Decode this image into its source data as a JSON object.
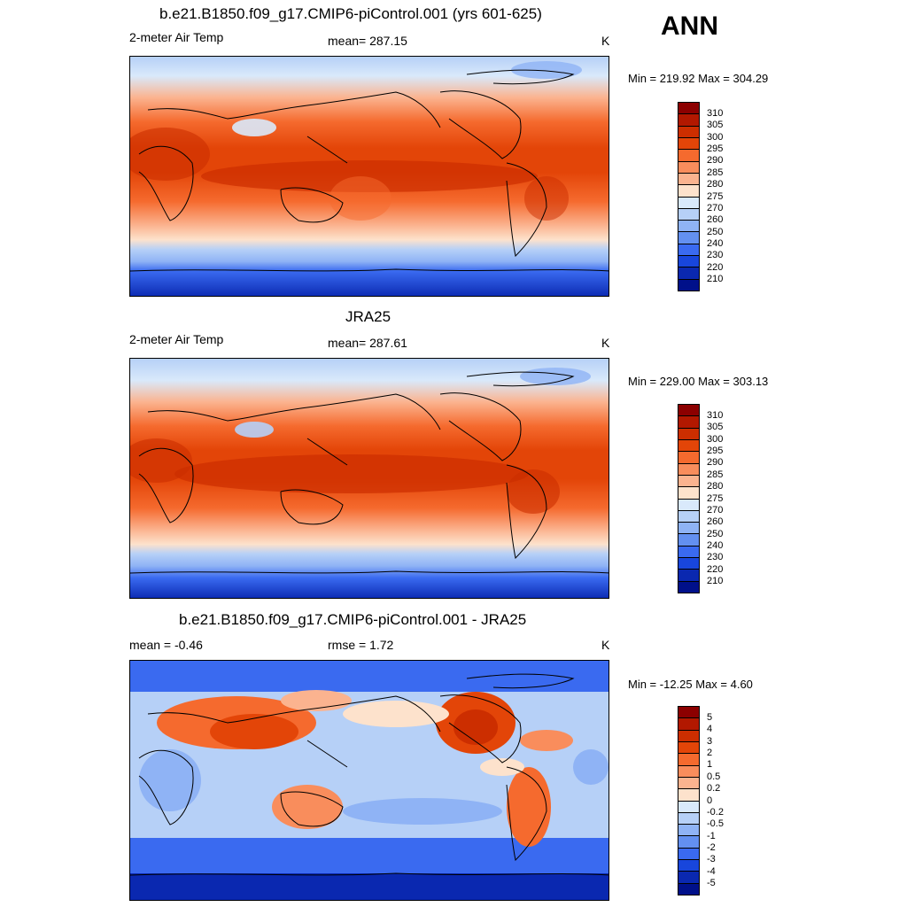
{
  "season": "ANN",
  "panels": [
    {
      "title": "b.e21.B1850.f09_g17.CMIP6-piControl.001 (yrs 601-625)",
      "left_label": "2-meter Air Temp",
      "center_label": "mean= 287.15",
      "units": "K",
      "minmax": "Min = 219.92 Max = 304.29"
    },
    {
      "title": "JRA25",
      "left_label": "2-meter Air Temp",
      "center_label": "mean= 287.61",
      "units": "K",
      "minmax": "Min = 229.00 Max = 303.13"
    },
    {
      "title": "b.e21.B1850.f09_g17.CMIP6-piControl.001 - JRA25",
      "left_label": "mean =  -0.46",
      "center_label": "rmse =   1.72",
      "units": "K",
      "minmax": "Min = -12.25 Max =   4.60"
    }
  ],
  "colorbar_temp": {
    "labels": [
      "310",
      "305",
      "300",
      "295",
      "290",
      "285",
      "280",
      "275",
      "270",
      "260",
      "250",
      "240",
      "230",
      "220",
      "210"
    ],
    "colors": [
      "#8c0000",
      "#b21800",
      "#cc2e00",
      "#e34508",
      "#f56a2e",
      "#f98d5c",
      "#fbb38f",
      "#fde2cc",
      "#d9e9fb",
      "#b6d0f7",
      "#8fb3f5",
      "#6390f0",
      "#3a6af0",
      "#1846dc",
      "#0a28b0",
      "#00108a"
    ]
  },
  "colorbar_diff": {
    "labels": [
      "5",
      "4",
      "3",
      "2",
      "1",
      "0.5",
      "0.2",
      "0",
      "-0.2",
      "-0.5",
      "-1",
      "-2",
      "-3",
      "-4",
      "-5"
    ],
    "colors": [
      "#8c0000",
      "#b21800",
      "#cc2e00",
      "#e34508",
      "#f56a2e",
      "#f98d5c",
      "#fbb38f",
      "#fde2cc",
      "#d9e9fb",
      "#b6d0f7",
      "#8fb3f5",
      "#6390f0",
      "#3a6af0",
      "#1846dc",
      "#0a28b0",
      "#00108a"
    ]
  }
}
